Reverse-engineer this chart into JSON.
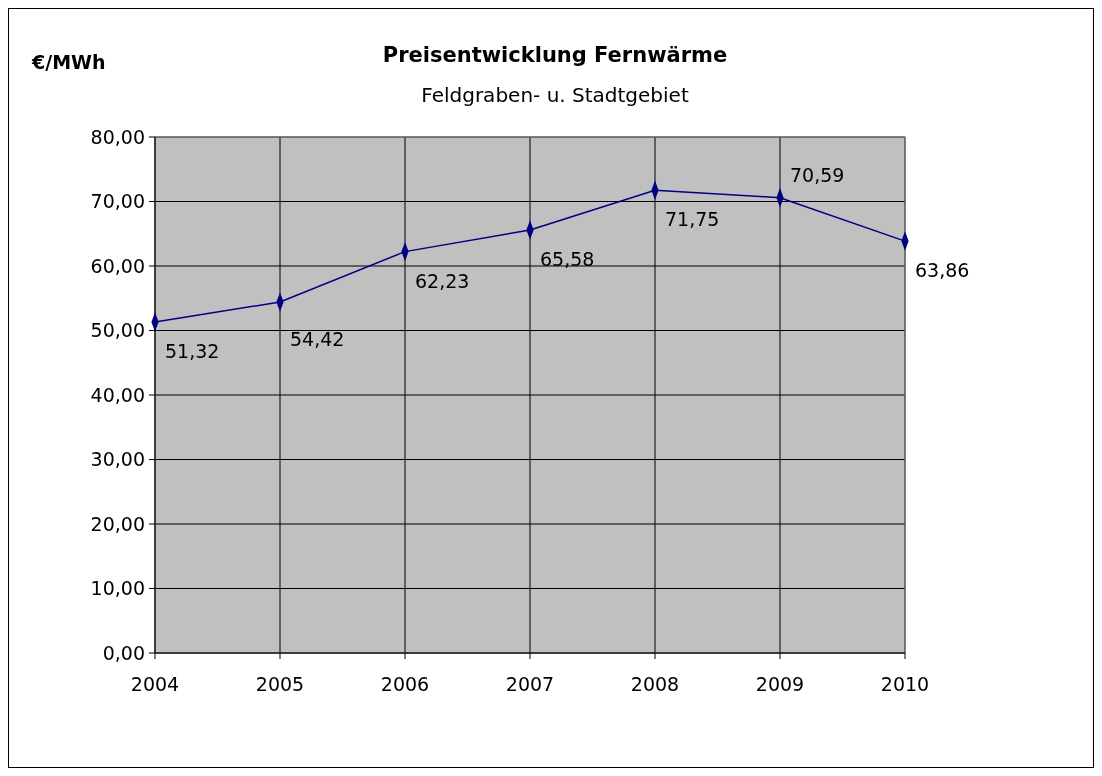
{
  "chart_data": {
    "type": "line",
    "title": "Preisentwicklung Fernwärme",
    "subtitle": "Feldgraben- u. Stadtgebiet",
    "ylabel": "€/MWh",
    "categories": [
      "2004",
      "2005",
      "2006",
      "2007",
      "2008",
      "2009",
      "2010"
    ],
    "series": [
      {
        "color": "#000080",
        "values": [
          51.32,
          54.42,
          62.23,
          65.58,
          71.75,
          70.59,
          63.86
        ],
        "value_labels": [
          "51,32",
          "54,42",
          "62,23",
          "65,58",
          "71,75",
          "70,59",
          "63,86"
        ]
      }
    ],
    "ylim": [
      0,
      80
    ],
    "yticks": [
      {
        "value": 0,
        "label": "0,00"
      },
      {
        "value": 10,
        "label": "10,00"
      },
      {
        "value": 20,
        "label": "20,00"
      },
      {
        "value": 30,
        "label": "30,00"
      },
      {
        "value": 40,
        "label": "40,00"
      },
      {
        "value": 50,
        "label": "50,00"
      },
      {
        "value": 60,
        "label": "60,00"
      },
      {
        "value": 70,
        "label": "70,00"
      },
      {
        "value": 80,
        "label": "80,00"
      }
    ],
    "grid": true,
    "marker": "diamond",
    "line_style": "solid"
  }
}
